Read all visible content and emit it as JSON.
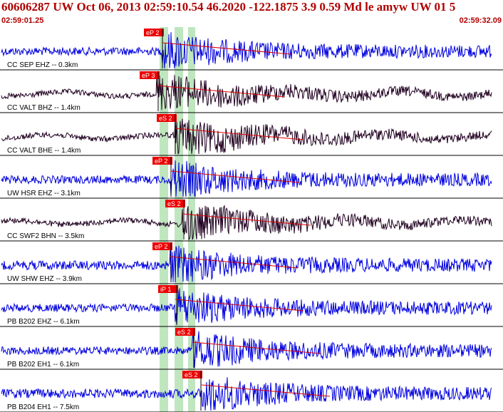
{
  "header": {
    "title": "60606287 UW Oct 06, 2013 02:59:10.54   46.2020 -122.1875  3.9 0.59 Md le amyw UW 01   5",
    "time_start": "02:59:01.25",
    "time_end": "02:59:32.09"
  },
  "colors": {
    "header_text": "#b00000",
    "pick_bg": "#ee0000",
    "window_band": "#bfe6bf",
    "trace_blue": "#0000e0",
    "trace_dark": "#200020",
    "coda_line": "#dd0000"
  },
  "traces": [
    {
      "label": "CC SEP EHZ -- 0.3km",
      "color": "blue",
      "pick": "eP 2",
      "amp": 0.35,
      "onset": 0.33
    },
    {
      "label": "CC VALT BHZ -- 1.4km",
      "color": "dark",
      "pick": "eP 3",
      "amp": 0.35,
      "onset": 0.32
    },
    {
      "label": "CC VALT BHE -- 1.4km",
      "color": "dark",
      "pick": "eS 2",
      "amp": 0.45,
      "onset": 0.35
    },
    {
      "label": "UW HSR EHZ -- 3.1km",
      "color": "blue",
      "pick": "eP 2",
      "amp": 0.35,
      "onset": 0.33
    },
    {
      "label": "CC SWF2 BHN -- 3.5km",
      "color": "dark",
      "pick": "eS 2",
      "amp": 0.55,
      "onset": 0.37
    },
    {
      "label": "UW SHW EHZ -- 3.9km",
      "color": "blue",
      "pick": "eP 2",
      "amp": 0.4,
      "onset": 0.33
    },
    {
      "label": "PB B202 EHZ -- 6.1km",
      "color": "blue",
      "pick": "iP 1",
      "amp": 0.35,
      "onset": 0.34
    },
    {
      "label": "PB B202 EH1 -- 6.1km",
      "color": "blue",
      "pick": "eS 2",
      "amp": 0.35,
      "onset": 0.38
    },
    {
      "label": "PB B204 EH1 -- 7.5km",
      "color": "blue",
      "pick": "eS 2",
      "amp": 0.4,
      "onset": 0.39
    }
  ]
}
